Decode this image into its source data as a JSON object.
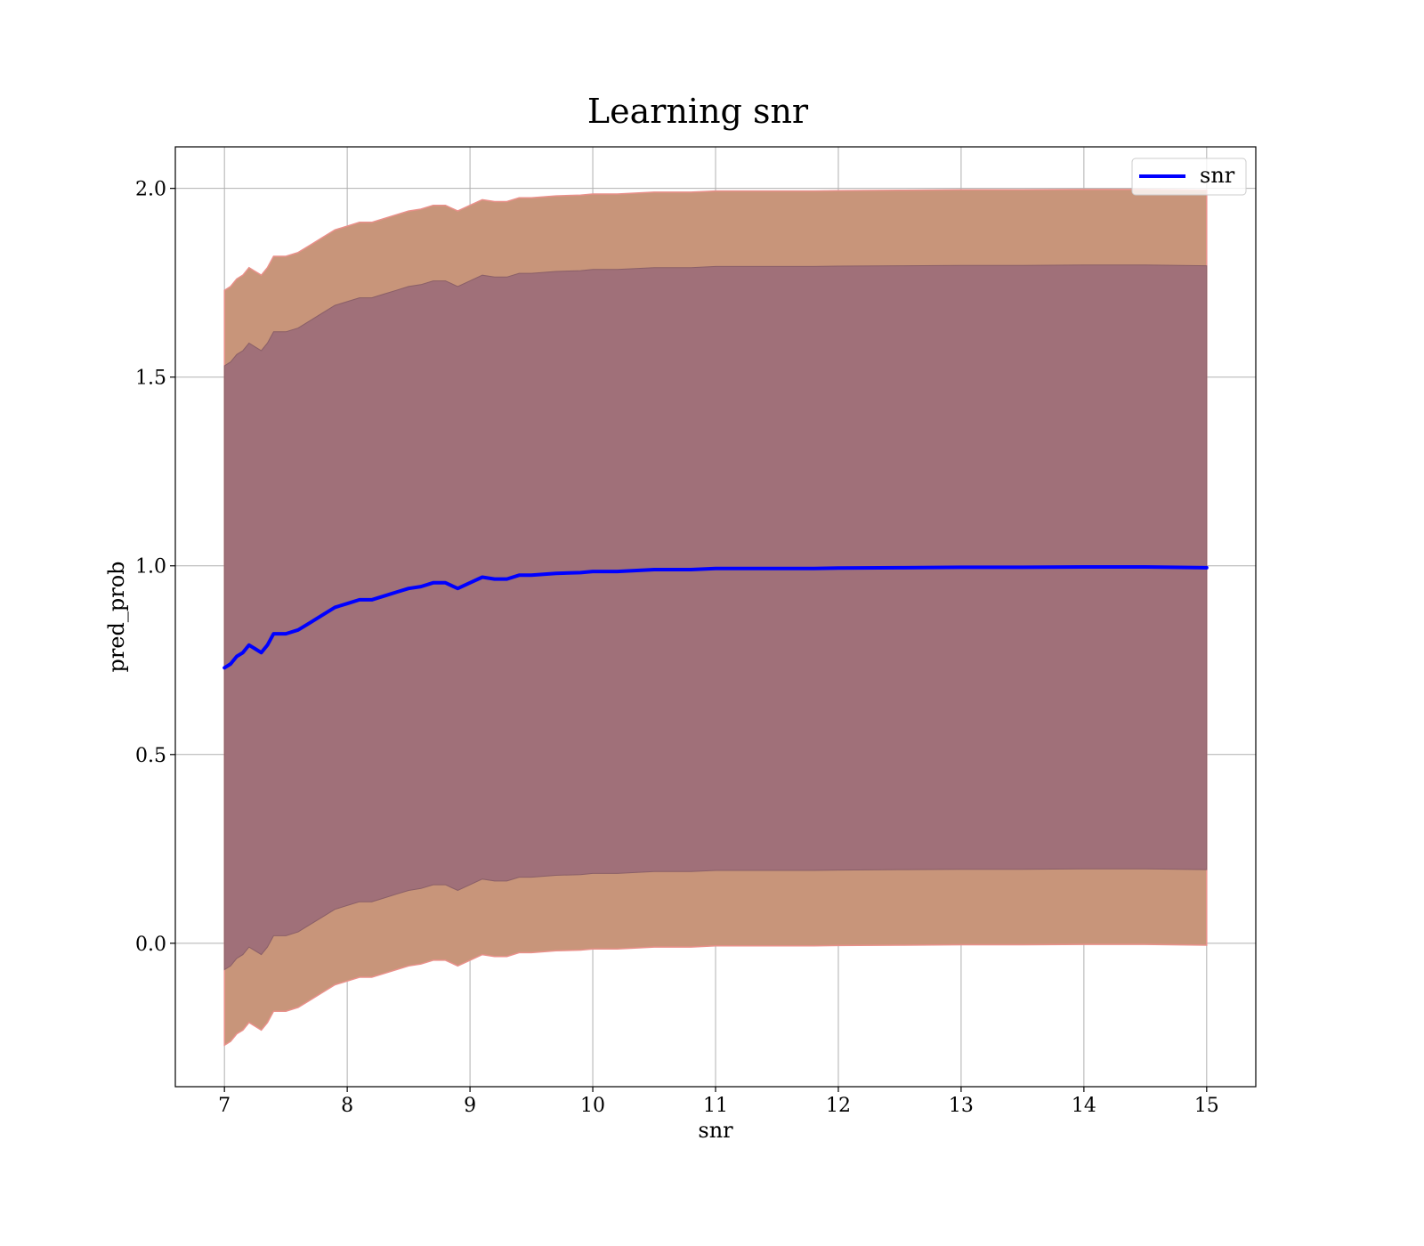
{
  "chart_data": {
    "type": "line",
    "title": "Learning snr",
    "xlabel": "snr",
    "ylabel": "pred_prob",
    "xlim": [
      6.6,
      15.4
    ],
    "ylim": [
      -0.38,
      2.11
    ],
    "xticks": [
      7,
      8,
      9,
      10,
      11,
      12,
      13,
      14,
      15
    ],
    "xtick_labels": [
      "7",
      "8",
      "9",
      "10",
      "11",
      "12",
      "13",
      "14",
      "15"
    ],
    "yticks": [
      0.0,
      0.5,
      1.0,
      1.5,
      2.0
    ],
    "ytick_labels": [
      "0.0",
      "0.5",
      "1.0",
      "1.5",
      "2.0"
    ],
    "grid": true,
    "legend": {
      "position": "top-right",
      "entries": [
        "snr"
      ]
    },
    "colors": {
      "line": "#0000ff",
      "outer_band": "#c8957a",
      "outer_band_edge": "#e9908a",
      "inner_band": "#a07079",
      "inner_band_edge": "#8a5f68"
    },
    "series": [
      {
        "name": "snr",
        "x": [
          7.0,
          7.05,
          7.1,
          7.15,
          7.2,
          7.25,
          7.3,
          7.35,
          7.4,
          7.5,
          7.6,
          7.7,
          7.8,
          7.9,
          8.0,
          8.1,
          8.2,
          8.3,
          8.4,
          8.5,
          8.6,
          8.7,
          8.8,
          8.9,
          9.0,
          9.1,
          9.2,
          9.3,
          9.4,
          9.5,
          9.7,
          9.9,
          10.0,
          10.2,
          10.5,
          10.8,
          11.0,
          11.3,
          11.5,
          11.8,
          12.0,
          12.5,
          13.0,
          13.5,
          14.0,
          14.5,
          15.0
        ],
        "values": [
          0.73,
          0.74,
          0.76,
          0.77,
          0.79,
          0.78,
          0.77,
          0.79,
          0.82,
          0.82,
          0.83,
          0.85,
          0.87,
          0.89,
          0.9,
          0.91,
          0.91,
          0.92,
          0.93,
          0.94,
          0.945,
          0.955,
          0.955,
          0.94,
          0.955,
          0.97,
          0.965,
          0.965,
          0.975,
          0.975,
          0.98,
          0.982,
          0.985,
          0.985,
          0.99,
          0.99,
          0.993,
          0.993,
          0.993,
          0.993,
          0.994,
          0.995,
          0.996,
          0.996,
          0.997,
          0.997,
          0.995
        ],
        "inner_band_halfwidth": 0.8,
        "outer_band_halfwidth": 1.0
      }
    ]
  }
}
